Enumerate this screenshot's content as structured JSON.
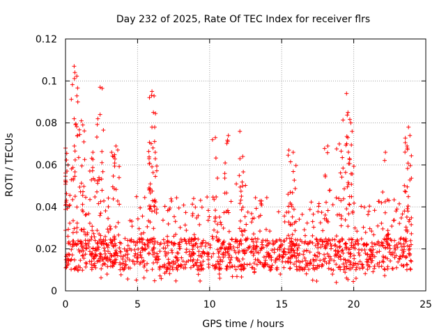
{
  "chart_data": {
    "type": "scatter",
    "title": "Day 232 of 2025, Rate Of TEC Index for receiver flrs",
    "xlabel": "GPS time / hours",
    "ylabel": "ROTI / TECUs",
    "xlim": [
      0,
      25
    ],
    "ylim": [
      0,
      0.12
    ],
    "xticks": [
      0,
      5,
      10,
      15,
      20,
      25
    ],
    "xtick_labels": [
      "0",
      "5",
      "10",
      "15",
      "20",
      "25"
    ],
    "yticks": [
      0,
      0.02,
      0.04,
      0.06,
      0.08,
      0.1,
      0.12
    ],
    "ytick_labels": [
      "0",
      "0.02",
      "0.04",
      "0.06",
      "0.08",
      "0.1",
      "0.12"
    ],
    "grid": true,
    "marker": "plus",
    "color": "#ff0000",
    "series": [
      {
        "name": "ROTI",
        "x_range": [
          0,
          24
        ],
        "typical_band": [
          0.01,
          0.025
        ],
        "peaks": [
          {
            "x": 0.0,
            "y": 0.068
          },
          {
            "x": 0.1,
            "y": 0.057
          },
          {
            "x": 0.6,
            "y": 0.107
          },
          {
            "x": 0.65,
            "y": 0.104
          },
          {
            "x": 0.6,
            "y": 0.082
          },
          {
            "x": 1.1,
            "y": 0.081
          },
          {
            "x": 1.2,
            "y": 0.079
          },
          {
            "x": 1.9,
            "y": 0.066
          },
          {
            "x": 2.4,
            "y": 0.097
          },
          {
            "x": 2.4,
            "y": 0.084
          },
          {
            "x": 3.2,
            "y": 0.066
          },
          {
            "x": 3.5,
            "y": 0.069
          },
          {
            "x": 6.0,
            "y": 0.095
          },
          {
            "x": 6.1,
            "y": 0.085
          },
          {
            "x": 6.0,
            "y": 0.078
          },
          {
            "x": 5.8,
            "y": 0.063
          },
          {
            "x": 10.4,
            "y": 0.073
          },
          {
            "x": 11.3,
            "y": 0.074
          },
          {
            "x": 12.1,
            "y": 0.076
          },
          {
            "x": 12.3,
            "y": 0.064
          },
          {
            "x": 15.5,
            "y": 0.067
          },
          {
            "x": 15.8,
            "y": 0.066
          },
          {
            "x": 18.2,
            "y": 0.069
          },
          {
            "x": 19.5,
            "y": 0.094
          },
          {
            "x": 19.6,
            "y": 0.085
          },
          {
            "x": 19.8,
            "y": 0.08
          },
          {
            "x": 19.0,
            "y": 0.07
          },
          {
            "x": 22.2,
            "y": 0.066
          },
          {
            "x": 23.8,
            "y": 0.078
          },
          {
            "x": 23.9,
            "y": 0.074
          },
          {
            "x": 23.7,
            "y": 0.069
          }
        ]
      }
    ]
  }
}
